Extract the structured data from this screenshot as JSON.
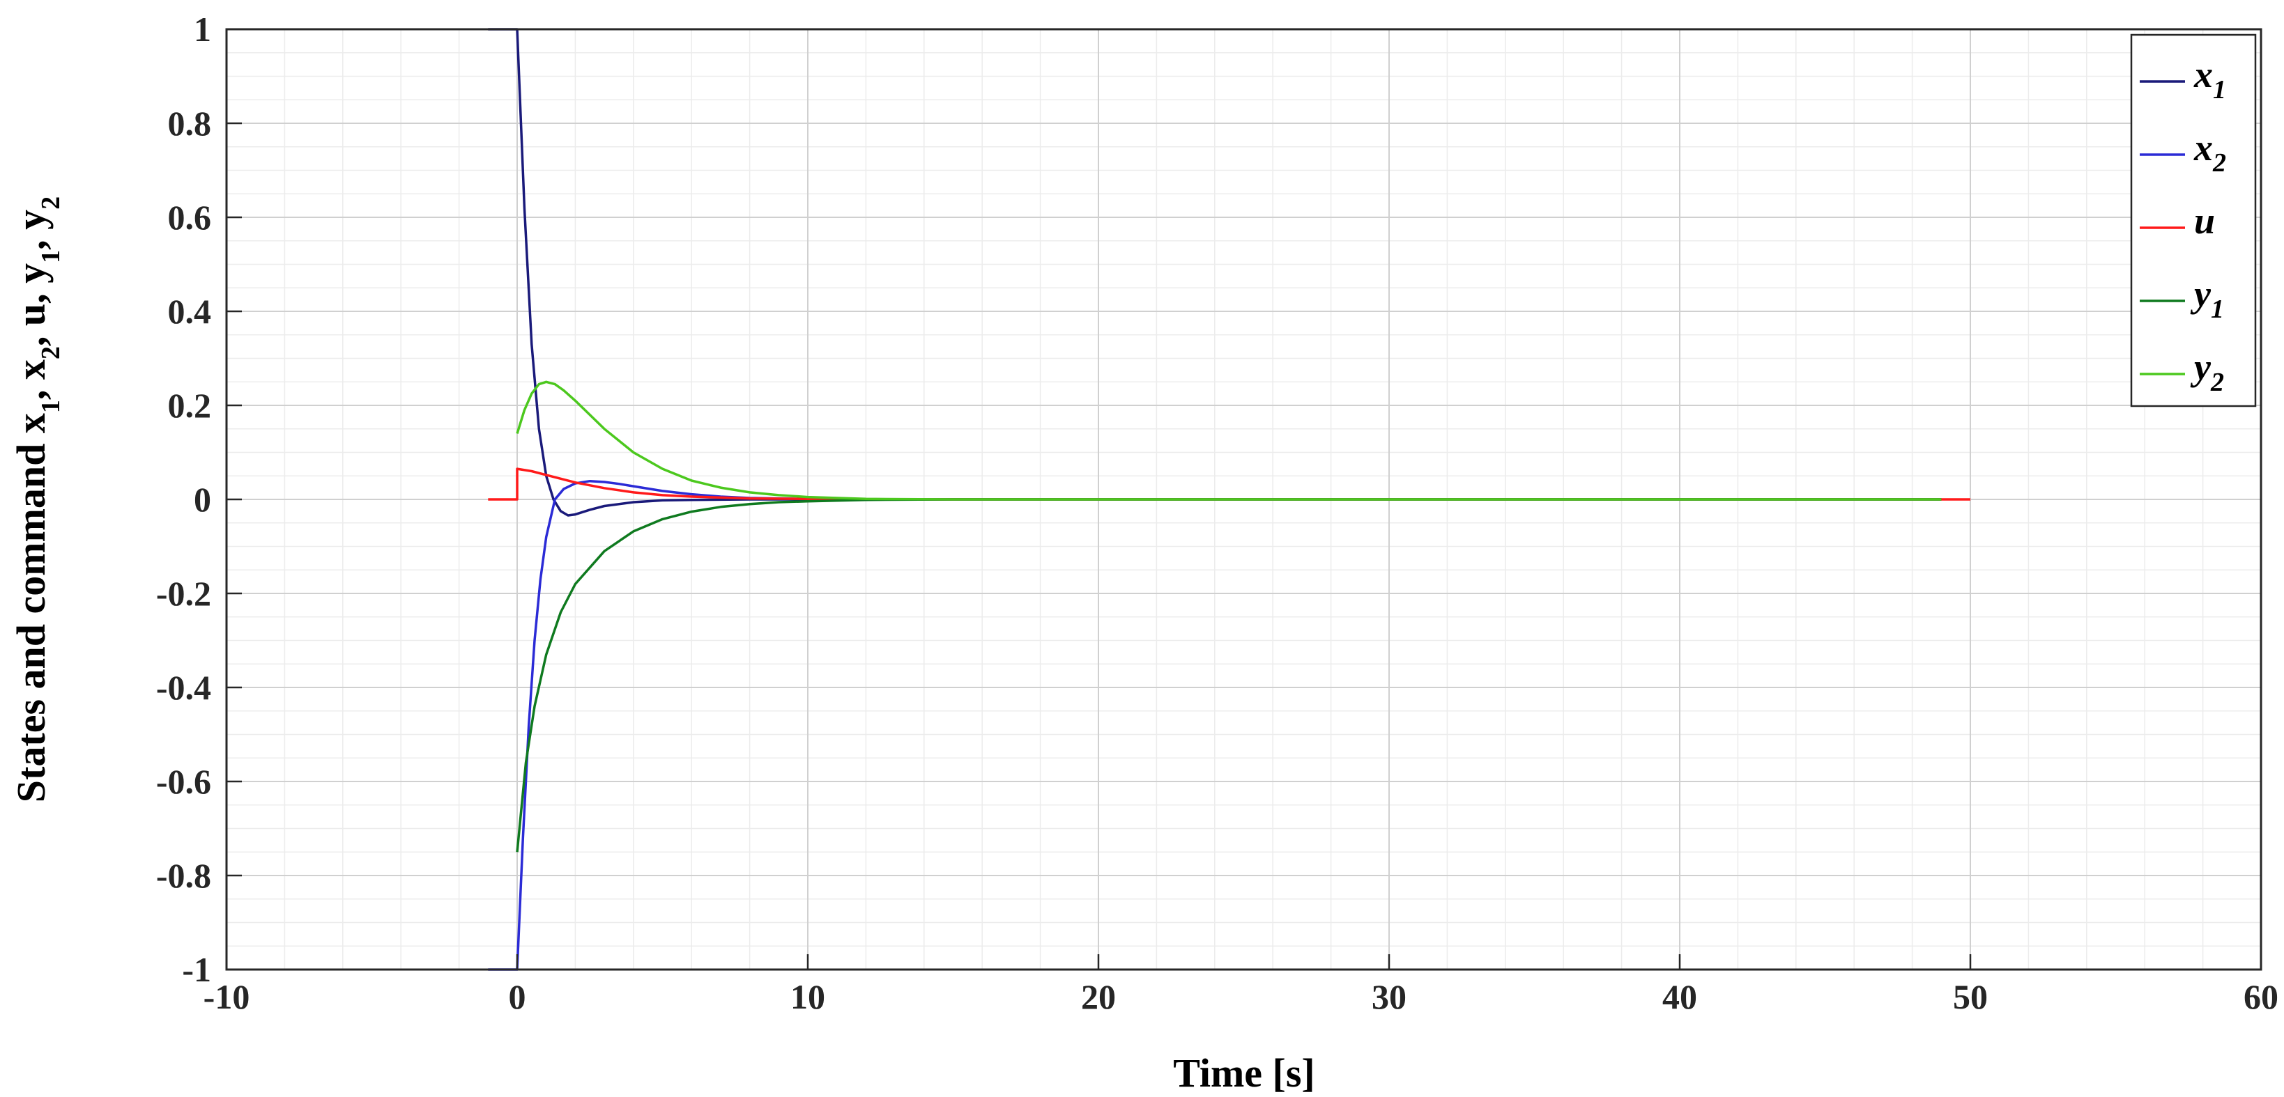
{
  "chart_data": {
    "type": "line",
    "xlabel": "Time [s]",
    "ylabel": {
      "parts": [
        "States and command x",
        "1",
        ", x",
        "2",
        ", u, y",
        "1",
        ", y",
        "2"
      ]
    },
    "xlim": [
      -10,
      60
    ],
    "ylim": [
      -1,
      1
    ],
    "xticks": [
      "-10",
      "0",
      "10",
      "20",
      "30",
      "40",
      "50",
      "60"
    ],
    "xtick_values": [
      -10,
      0,
      10,
      20,
      30,
      40,
      50,
      60
    ],
    "yticks": [
      "-1",
      "-0.8",
      "-0.6",
      "-0.4",
      "-0.2",
      "0",
      "0.2",
      "0.4",
      "0.6",
      "0.8",
      "1"
    ],
    "ytick_values": [
      -1,
      -0.8,
      -0.6,
      -0.4,
      -0.2,
      0,
      0.2,
      0.4,
      0.6,
      0.8,
      1
    ],
    "grid": true,
    "minor_grid": true,
    "legend_position": "top-right",
    "series": [
      {
        "name": "x1",
        "base": "x",
        "sub": "1",
        "color": "#1a1a7a",
        "x": [
          -1,
          0,
          0.25,
          0.5,
          0.75,
          1.0,
          1.25,
          1.5,
          1.75,
          2.0,
          2.5,
          3,
          4,
          5,
          6,
          8,
          10,
          12,
          15,
          49
        ],
        "y": [
          1,
          1,
          0.62,
          0.33,
          0.15,
          0.05,
          0.0,
          -0.025,
          -0.034,
          -0.032,
          -0.022,
          -0.014,
          -0.006,
          -0.002,
          -0.001,
          0,
          0,
          0,
          0,
          0
        ]
      },
      {
        "name": "x2",
        "base": "x",
        "sub": "2",
        "color": "#2b2bd6",
        "x": [
          -1,
          0,
          0.2,
          0.4,
          0.6,
          0.8,
          1.0,
          1.3,
          1.6,
          2.0,
          2.5,
          3,
          3.5,
          4,
          5,
          6,
          7,
          8,
          10,
          12,
          15,
          49
        ],
        "y": [
          -1,
          -1,
          -0.72,
          -0.48,
          -0.3,
          -0.17,
          -0.08,
          0.0,
          0.022,
          0.034,
          0.039,
          0.037,
          0.033,
          0.028,
          0.018,
          0.011,
          0.006,
          0.003,
          0.001,
          0,
          0,
          0
        ]
      },
      {
        "name": "u",
        "base": "u",
        "sub": "",
        "color": "#ff1a1a",
        "x": [
          -1,
          0,
          0,
          0.5,
          1,
          2,
          3,
          4,
          5,
          6,
          8,
          10,
          12,
          15,
          49,
          50
        ],
        "y": [
          0,
          0,
          0.065,
          0.06,
          0.052,
          0.036,
          0.024,
          0.015,
          0.009,
          0.006,
          0.002,
          0.001,
          0,
          0,
          0,
          0
        ]
      },
      {
        "name": "y1",
        "base": "y",
        "sub": "1",
        "color": "#0f7a1f",
        "x": [
          0,
          0.3,
          0.6,
          1,
          1.5,
          2,
          3,
          4,
          5,
          6,
          7,
          8,
          9,
          10,
          12,
          15,
          49
        ],
        "y": [
          -0.75,
          -0.56,
          -0.44,
          -0.33,
          -0.24,
          -0.18,
          -0.11,
          -0.068,
          -0.042,
          -0.026,
          -0.016,
          -0.01,
          -0.006,
          -0.004,
          -0.001,
          0,
          0
        ]
      },
      {
        "name": "y2",
        "base": "y",
        "sub": "2",
        "color": "#4cc81e",
        "x": [
          0,
          0.25,
          0.5,
          0.75,
          1.0,
          1.3,
          1.6,
          2,
          3,
          4,
          5,
          6,
          7,
          8,
          9,
          10,
          12,
          15,
          49
        ],
        "y": [
          0.14,
          0.19,
          0.225,
          0.245,
          0.25,
          0.245,
          0.232,
          0.21,
          0.15,
          0.1,
          0.065,
          0.04,
          0.025,
          0.015,
          0.009,
          0.005,
          0.001,
          0,
          0
        ]
      }
    ]
  }
}
